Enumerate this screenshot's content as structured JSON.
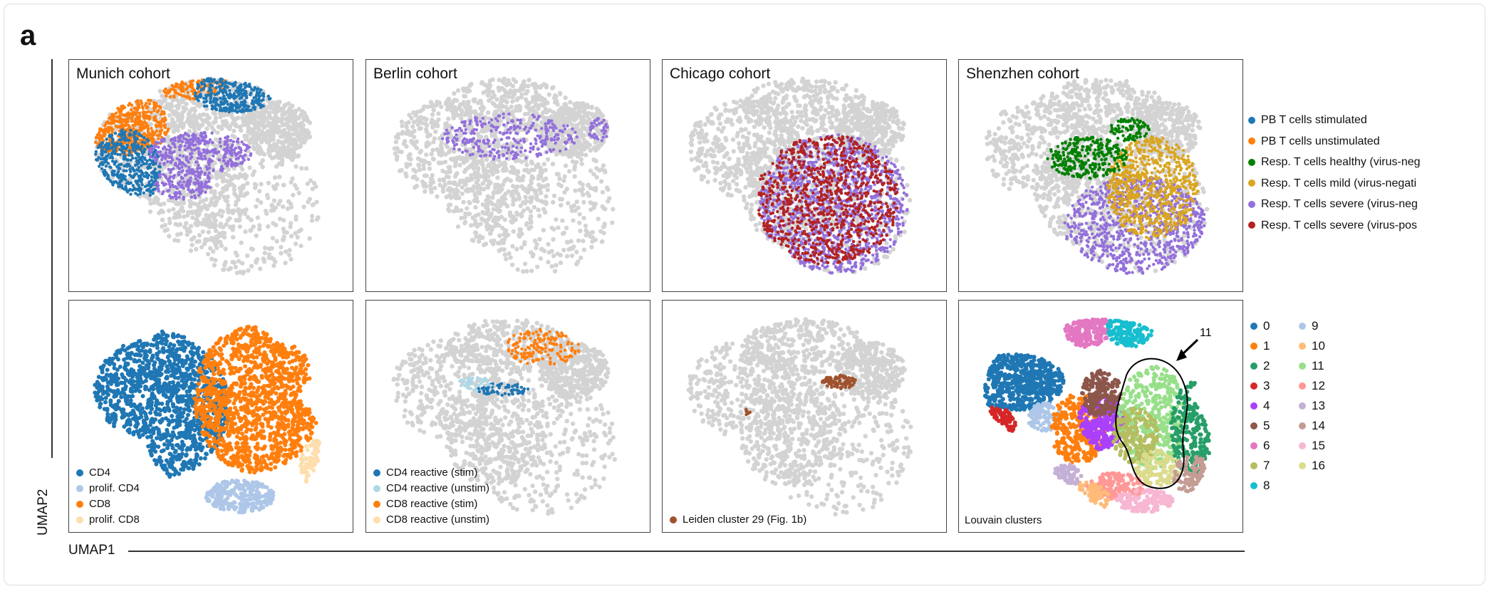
{
  "figure_letter": "a",
  "chart_data": {
    "type": "scatter",
    "xlabel": "UMAP1",
    "ylabel": "UMAP2",
    "background_color": "#d3d3d3",
    "panels": [
      {
        "title": "Munich cohort",
        "legend_ref": "cohort_legend",
        "shown": [
          "PB T cells stimulated",
          "PB T cells unstimulated",
          "Resp. T cells severe (virus-negative)"
        ]
      },
      {
        "title": "Berlin cohort",
        "legend_ref": "cohort_legend",
        "shown": [
          "Resp. T cells severe (virus-negative)"
        ]
      },
      {
        "title": "Chicago cohort",
        "legend_ref": "cohort_legend",
        "shown": [
          "Resp. T cells severe (virus-negative)",
          "Resp. T cells severe (virus-positive)"
        ]
      },
      {
        "title": "Shenzhen cohort",
        "legend_ref": "cohort_legend",
        "shown": [
          "Resp. T cells healthy (virus-negative)",
          "Resp. T cells mild (virus-negative)",
          "Resp. T cells severe (virus-negative)"
        ]
      },
      {
        "title": "",
        "legend": [
          {
            "label": "CD4",
            "color": "#1f77b4"
          },
          {
            "label": "prolif. CD4",
            "color": "#aec7e8"
          },
          {
            "label": "CD8",
            "color": "#ff7f0e"
          },
          {
            "label": "prolif. CD8",
            "color": "#ffdead"
          }
        ]
      },
      {
        "title": "",
        "legend": [
          {
            "label": "CD4 reactive (stim)",
            "color": "#1f77b4"
          },
          {
            "label": "CD4 reactive (unstim)",
            "color": "#add8e6"
          },
          {
            "label": "CD8 reactive (stim)",
            "color": "#ff7f0e"
          },
          {
            "label": "CD8 reactive (unstim)",
            "color": "#ffdead"
          }
        ]
      },
      {
        "title": "",
        "legend": [
          {
            "label": "Leiden cluster 29 (Fig. 1b)",
            "color": "#a0522d"
          }
        ]
      },
      {
        "title": "",
        "label": "Louvain clusters",
        "annotation": "11"
      }
    ],
    "cohort_legend": [
      {
        "label": "PB T cells stimulated",
        "color": "#1f77b4"
      },
      {
        "label": "PB T cells unstimulated",
        "color": "#ff7f0e"
      },
      {
        "label": "Resp. T cells healthy (virus-neg",
        "color": "#008000"
      },
      {
        "label": "Resp. T cells mild (virus-negati",
        "color": "#daa520"
      },
      {
        "label": "Resp. T cells severe (virus-neg",
        "color": "#9370db"
      },
      {
        "label": "Resp. T cells severe (virus-pos",
        "color": "#b22222"
      }
    ],
    "louvain_legend": [
      {
        "label": "0",
        "color": "#1f77b4"
      },
      {
        "label": "1",
        "color": "#ff7f0e"
      },
      {
        "label": "2",
        "color": "#279e68"
      },
      {
        "label": "3",
        "color": "#d62728"
      },
      {
        "label": "4",
        "color": "#aa40fc"
      },
      {
        "label": "5",
        "color": "#8c564b"
      },
      {
        "label": "6",
        "color": "#e377c2"
      },
      {
        "label": "7",
        "color": "#b5bd61"
      },
      {
        "label": "8",
        "color": "#17becf"
      },
      {
        "label": "9",
        "color": "#aec7e8"
      },
      {
        "label": "10",
        "color": "#ffbb78"
      },
      {
        "label": "11",
        "color": "#98df8a"
      },
      {
        "label": "12",
        "color": "#ff9896"
      },
      {
        "label": "13",
        "color": "#c5b0d5"
      },
      {
        "label": "14",
        "color": "#c49c94"
      },
      {
        "label": "15",
        "color": "#f7b6d2"
      },
      {
        "label": "16",
        "color": "#dbdb8d"
      }
    ]
  }
}
